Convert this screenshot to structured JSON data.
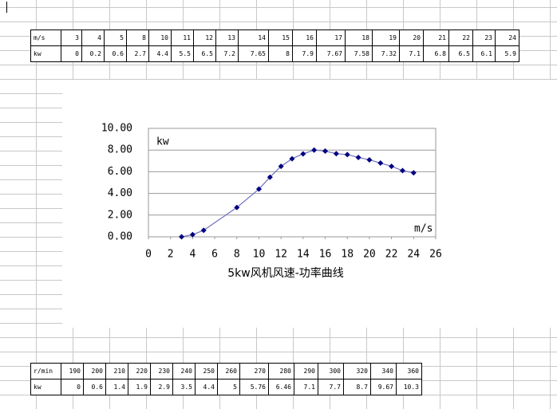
{
  "tables": [
    {
      "rows": [
        [
          "m/s",
          "3",
          "4",
          "5",
          "8",
          "10",
          "11",
          "12",
          "13",
          "14",
          "15",
          "16",
          "17",
          "18",
          "19",
          "20",
          "21",
          "22",
          "23",
          "24"
        ],
        [
          "kw",
          "0",
          "0.2",
          "0.6",
          "2.7",
          "4.4",
          "5.5",
          "6.5",
          "7.2",
          "7.65",
          "8",
          "7.9",
          "7.67",
          "7.58",
          "7.32",
          "7.1",
          "6.8",
          "6.5",
          "6.1",
          "5.9"
        ]
      ]
    },
    {
      "rows": [
        [
          "r/min",
          "190",
          "200",
          "210",
          "220",
          "230",
          "240",
          "250",
          "260",
          "270",
          "280",
          "290",
          "300",
          "320",
          "340",
          "360"
        ],
        [
          "kw",
          "0",
          "0.6",
          "1.4",
          "1.9",
          "2.9",
          "3.5",
          "4.4",
          "5",
          "5.76",
          "6.46",
          "7.1",
          "7.7",
          "8.7",
          "9.67",
          "10.3"
        ]
      ]
    }
  ],
  "chart_data": {
    "type": "line",
    "title": "5kw风机风速-功率曲线",
    "x_label": "m/s",
    "y_label": "kw",
    "x": [
      3,
      4,
      5,
      8,
      10,
      11,
      12,
      13,
      14,
      15,
      16,
      17,
      18,
      19,
      20,
      21,
      22,
      23,
      24
    ],
    "series": [
      {
        "color": "#000080",
        "line_color": "#7070c0",
        "values": [
          0,
          0.2,
          0.6,
          2.7,
          4.4,
          5.5,
          6.5,
          7.2,
          7.65,
          8,
          7.9,
          7.67,
          7.58,
          7.32,
          7.1,
          6.8,
          6.5,
          6.1,
          5.9
        ]
      }
    ],
    "xlim": [
      0,
      26
    ],
    "xticks": [
      0,
      2,
      4,
      6,
      8,
      10,
      12,
      14,
      16,
      18,
      20,
      22,
      24,
      26
    ],
    "ylim": [
      0,
      10
    ],
    "yticks": [
      {
        "value": 0,
        "label": "0.00"
      },
      {
        "value": 2,
        "label": "2.00"
      },
      {
        "value": 4,
        "label": "4.00"
      },
      {
        "value": 6,
        "label": "6.00"
      },
      {
        "value": 8,
        "label": "8.00"
      },
      {
        "value": 10,
        "label": "10.00"
      }
    ],
    "grid": true
  }
}
